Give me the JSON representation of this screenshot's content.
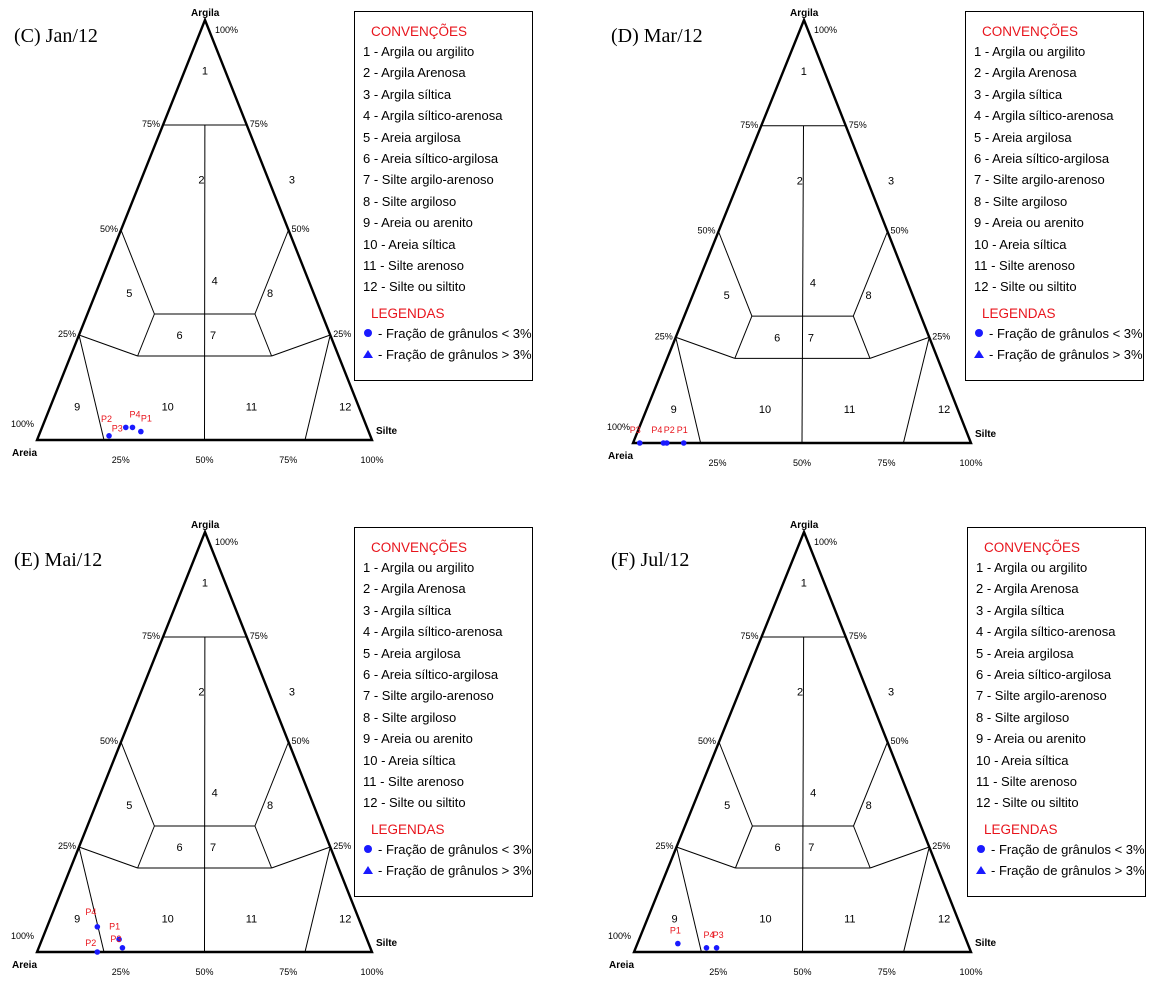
{
  "panels": [
    {
      "label": "(C) Jan/12",
      "points": [
        {
          "id": "P2",
          "sand": 78,
          "silt": 21,
          "clay": 1,
          "shape": "circle",
          "label": "P2",
          "label_dx": -8,
          "label_dy": -14
        },
        {
          "id": "P4",
          "sand": 70,
          "silt": 27,
          "clay": 3,
          "shape": "circle",
          "label": "P4",
          "label_dx": -3,
          "label_dy": -10
        },
        {
          "id": "P1",
          "sand": 68,
          "silt": 30,
          "clay": 2,
          "shape": "circle",
          "label": "P1",
          "label_dx": 0,
          "label_dy": -10
        },
        {
          "id": "P3",
          "sand": 72,
          "silt": 25,
          "clay": 3,
          "shape": "circle",
          "label": "P3",
          "label_dx": -14,
          "label_dy": 4
        }
      ]
    },
    {
      "label": "(D) Mar/12",
      "points": [
        {
          "id": "P3",
          "sand": 98,
          "silt": 2,
          "clay": 0,
          "shape": "circle",
          "label": "P3",
          "label_dx": -10,
          "label_dy": -10
        },
        {
          "id": "P4",
          "sand": 91,
          "silt": 9,
          "clay": 0,
          "shape": "circle",
          "label": "P4",
          "label_dx": -12,
          "label_dy": -10
        },
        {
          "id": "P2",
          "sand": 90,
          "silt": 10,
          "clay": 0,
          "shape": "circle",
          "label": "P2",
          "label_dx": -3,
          "label_dy": -10
        },
        {
          "id": "P1",
          "sand": 85,
          "silt": 15,
          "clay": 0,
          "shape": "circle",
          "label": "P1",
          "label_dx": -7,
          "label_dy": -10
        }
      ]
    },
    {
      "label": "(E) Mai/12",
      "points": [
        {
          "id": "P4",
          "sand": 79,
          "silt": 15,
          "clay": 6,
          "shape": "circle",
          "label": "P4",
          "label_dx": -12,
          "label_dy": -12
        },
        {
          "id": "P1",
          "sand": 74,
          "silt": 23,
          "clay": 3,
          "shape": "circle",
          "label": "P1",
          "label_dx": -10,
          "label_dy": -10
        },
        {
          "id": "P3",
          "sand": 74,
          "silt": 25,
          "clay": 1,
          "shape": "circle",
          "label": "P3",
          "label_dx": -12,
          "label_dy": -6
        },
        {
          "id": "P2",
          "sand": 82,
          "silt": 18,
          "clay": 0,
          "shape": "circle",
          "label": "P2",
          "label_dx": -12,
          "label_dy": -6
        }
      ]
    },
    {
      "label": "(F) Jul/12",
      "points": [
        {
          "id": "P1",
          "sand": 86,
          "silt": 12,
          "clay": 2,
          "shape": "circle",
          "label": "P1",
          "label_dx": -8,
          "label_dy": -10
        },
        {
          "id": "P4",
          "sand": 78,
          "silt": 21,
          "clay": 1,
          "shape": "circle",
          "label": "P4",
          "label_dx": -3,
          "label_dy": -10
        },
        {
          "id": "P3",
          "sand": 75,
          "silt": 24,
          "clay": 1,
          "shape": "circle",
          "label": "P3",
          "label_dx": -4,
          "label_dy": -10
        }
      ]
    }
  ],
  "axes": {
    "top": "Argila",
    "left": "Areia",
    "right": "Silte",
    "tick_values": [
      "25%",
      "50%",
      "75%",
      "100%"
    ]
  },
  "zone_numbers": [
    "1",
    "2",
    "3",
    "4",
    "5",
    "6",
    "7",
    "8",
    "9",
    "10",
    "11",
    "12"
  ],
  "legend": {
    "conventions_title": "CONVENÇÕES",
    "conventions": [
      "1 - Argila ou argilito",
      "2 - Argila Arenosa",
      "3 - Argila síltica",
      "4 - Argila síltico-arenosa",
      "5 - Areia argilosa",
      "6 - Areia síltico-argilosa",
      "7 - Silte argilo-arenoso",
      "8 - Silte argiloso",
      "9 - Areia ou arenito",
      "10 - Areia síltica",
      "11 - Silte arenoso",
      "12 - Silte ou siltito"
    ],
    "legends_title": "LEGENDAS",
    "legends": [
      {
        "symbol": "circle",
        "text": " - Fração de grânulos < 3%"
      },
      {
        "symbol": "triangle",
        "text": " - Fração de grânulos > 3%"
      }
    ]
  },
  "colors": {
    "points": "#1a1aff",
    "red": "#e8141c",
    "lines": "#000000"
  }
}
